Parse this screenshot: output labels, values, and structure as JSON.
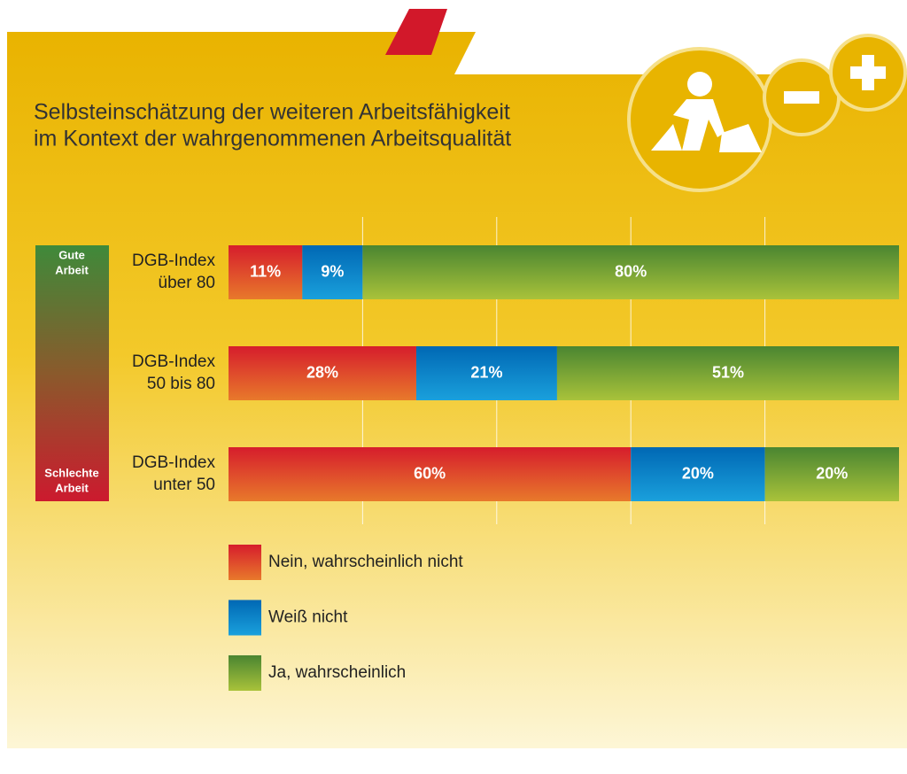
{
  "chart_data": {
    "type": "stacked_bar_horizontal",
    "title": [
      "Selbsteinschätzung der weiteren Arbeitsfähigkeit",
      "im Kontext der wahrgenommenen Arbeitsqualität"
    ],
    "scale_labels": {
      "top": [
        "Gute",
        "Arbeit"
      ],
      "bottom": [
        "Schlechte",
        "Arbeit"
      ]
    },
    "categories": [
      [
        "DGB-Index",
        "über 80"
      ],
      [
        "DGB-Index",
        "50 bis 80"
      ],
      [
        "DGB-Index",
        "unter 50"
      ]
    ],
    "series": [
      {
        "name": "Nein, wahrscheinlich nicht",
        "color": [
          "#d61d2c",
          "#e8792b"
        ],
        "values": [
          11,
          28,
          60
        ],
        "value_labels": [
          "11%",
          "28%",
          "60%"
        ]
      },
      {
        "name": "Weiß nicht",
        "color": [
          "#0068b4",
          "#1aa0dc"
        ],
        "values": [
          9,
          21,
          20
        ],
        "value_labels": [
          "9%",
          "21%",
          "20%"
        ]
      },
      {
        "name": "Ja, wahrscheinlich",
        "color": [
          "#4a8531",
          "#a9c23a"
        ],
        "values": [
          80,
          51,
          20
        ],
        "value_labels": [
          "80%",
          "51%",
          "20%"
        ]
      }
    ],
    "xlim": [
      0,
      100
    ],
    "xticks": [
      20,
      40,
      60,
      80
    ],
    "grid": true
  }
}
